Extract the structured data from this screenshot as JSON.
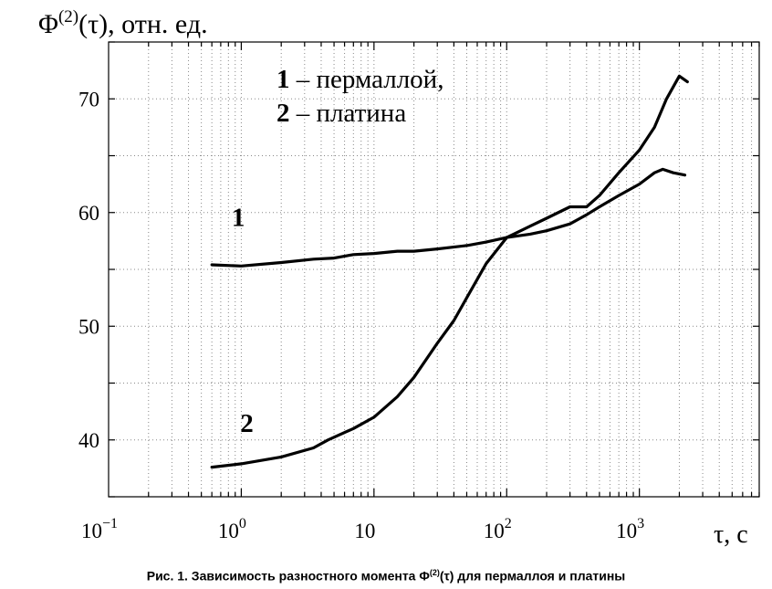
{
  "chart_data": {
    "type": "line",
    "ylabel": {
      "base": "Φ",
      "sup": "(2)",
      "rest": "(τ), отн. ед."
    },
    "xlabel": "τ, с",
    "x_scale": "log",
    "xlim": [
      0.1,
      8000
    ],
    "ylim": [
      35,
      75
    ],
    "x_ticks": [
      {
        "value": 0.1,
        "base": "10",
        "sup": "−1"
      },
      {
        "value": 1,
        "base": "10",
        "sup": "0"
      },
      {
        "value": 10,
        "base": "10",
        "sup": ""
      },
      {
        "value": 100,
        "base": "10",
        "sup": "2"
      },
      {
        "value": 1000,
        "base": "10",
        "sup": "3"
      }
    ],
    "y_ticks": [
      40,
      50,
      60,
      70
    ],
    "grid": true,
    "legend": [
      {
        "num": "1",
        "text": " – пермаллой,"
      },
      {
        "num": "2",
        "text": " – платина"
      }
    ],
    "series": [
      {
        "name": "1",
        "x": [
          0.6,
          1.0,
          2.0,
          3.5,
          5.0,
          7.0,
          10,
          15,
          20,
          30,
          50,
          70,
          100,
          150,
          200,
          300,
          400,
          500,
          700,
          1000,
          1300,
          1500,
          1800,
          2200
        ],
        "y": [
          55.4,
          55.3,
          55.6,
          55.9,
          56.0,
          56.3,
          56.4,
          56.6,
          56.6,
          56.8,
          57.1,
          57.4,
          57.8,
          58.1,
          58.4,
          59.0,
          59.8,
          60.5,
          61.5,
          62.5,
          63.5,
          63.8,
          63.5,
          63.3
        ]
      },
      {
        "name": "2",
        "x": [
          0.6,
          1.0,
          2.0,
          3.5,
          4.5,
          7.0,
          10,
          15,
          20,
          30,
          40,
          50,
          70,
          100,
          150,
          200,
          300,
          400,
          500,
          700,
          1000,
          1300,
          1600,
          2000,
          2300
        ],
        "y": [
          37.6,
          37.9,
          38.5,
          39.3,
          40.0,
          41.0,
          42.0,
          43.8,
          45.5,
          48.5,
          50.5,
          52.5,
          55.5,
          57.8,
          58.8,
          59.5,
          60.5,
          60.5,
          61.5,
          63.5,
          65.5,
          67.5,
          70.0,
          72.0,
          71.5
        ]
      }
    ],
    "annotations": [
      {
        "text": "1",
        "x": 0.95,
        "y": 58.8
      },
      {
        "text": "2",
        "x": 1.1,
        "y": 40.7
      }
    ]
  },
  "caption": {
    "prefix": "Рис. 1. Зависимость разностного момента Φ",
    "sup": "(2)",
    "suffix": "(τ) для пермаллоя и платины"
  }
}
